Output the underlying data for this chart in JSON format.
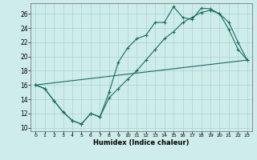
{
  "xlabel": "Humidex (Indice chaleur)",
  "bg_color": "#ceecea",
  "grid_color": "#a8d5d2",
  "line_color": "#1a6b60",
  "xlim_min": -0.5,
  "xlim_max": 23.5,
  "ylim_min": 9.5,
  "ylim_max": 27.5,
  "xticks": [
    0,
    1,
    2,
    3,
    4,
    5,
    6,
    7,
    8,
    9,
    10,
    11,
    12,
    13,
    14,
    15,
    16,
    17,
    18,
    19,
    20,
    21,
    22,
    23
  ],
  "yticks": [
    10,
    12,
    14,
    16,
    18,
    20,
    22,
    24,
    26
  ],
  "curve1_x": [
    0,
    1,
    2,
    3,
    4,
    5,
    6,
    7,
    8,
    9,
    10,
    11,
    12,
    13,
    14,
    15,
    16,
    17,
    18,
    19,
    20,
    21,
    22,
    23
  ],
  "curve1_y": [
    16.0,
    15.5,
    13.8,
    12.2,
    11.0,
    10.5,
    12.0,
    11.5,
    15.0,
    19.2,
    21.2,
    22.5,
    23.0,
    24.8,
    24.8,
    27.0,
    25.5,
    25.2,
    26.8,
    26.7,
    26.0,
    23.8,
    21.0,
    19.5
  ],
  "curve2_x": [
    0,
    1,
    2,
    3,
    4,
    5,
    6,
    7,
    8,
    9,
    10,
    11,
    12,
    13,
    14,
    15,
    16,
    17,
    18,
    19,
    20,
    21,
    22,
    23
  ],
  "curve2_y": [
    16.0,
    15.5,
    13.8,
    12.2,
    11.0,
    10.5,
    12.0,
    11.5,
    14.2,
    15.5,
    16.8,
    18.0,
    19.5,
    21.0,
    22.5,
    23.5,
    24.8,
    25.5,
    26.2,
    26.5,
    26.0,
    24.8,
    22.0,
    19.5
  ],
  "curve3_x": [
    0,
    23
  ],
  "curve3_y": [
    16.0,
    19.5
  ]
}
